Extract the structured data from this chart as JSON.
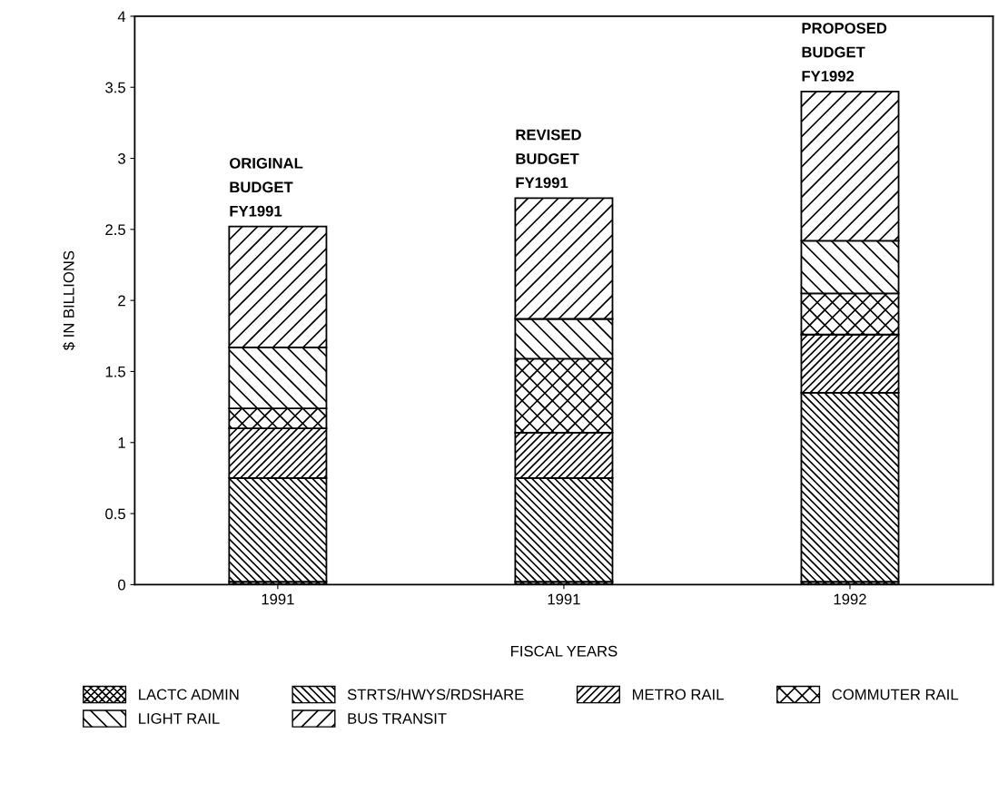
{
  "chart_data": {
    "type": "bar",
    "stacked": true,
    "categories": [
      "1991",
      "1991",
      "1992"
    ],
    "xlabel": "FISCAL YEARS",
    "ylabel": "$ IN BILLIONS",
    "series": [
      {
        "name": "LACTC ADMIN",
        "color": "#000000",
        "values": [
          0.02,
          0.02,
          0.02
        ]
      },
      {
        "name": "STRTS/HWYS/RDSHARE",
        "color": "#000000",
        "values": [
          0.73,
          0.73,
          1.33
        ]
      },
      {
        "name": "METRO RAIL",
        "color": "#000000",
        "values": [
          0.35,
          0.32,
          0.41
        ]
      },
      {
        "name": "COMMUTER RAIL",
        "color": "#000000",
        "values": [
          0.14,
          0.52,
          0.29
        ]
      },
      {
        "name": "LIGHT RAIL",
        "color": "#000000",
        "values": [
          0.43,
          0.28,
          0.37
        ]
      },
      {
        "name": "BUS TRANSIT",
        "color": "#000000",
        "values": [
          0.85,
          0.85,
          1.05
        ]
      }
    ],
    "annotations": [
      "ORIGINAL\nBUDGET\nFY1991",
      "REVISED\nBUDGET\nFY1991",
      "PROPOSED\nBUDGET\nFY1992"
    ],
    "ylim": [
      0,
      4
    ],
    "yticks": [
      0,
      0.5,
      1,
      1.5,
      2,
      2.5,
      3,
      3.5,
      4
    ],
    "grid": false,
    "legend": "bottom"
  }
}
